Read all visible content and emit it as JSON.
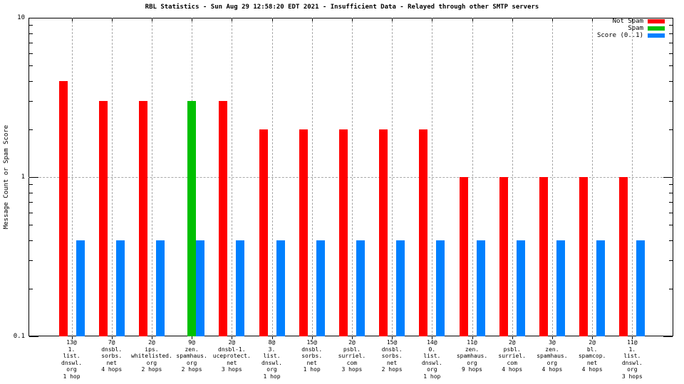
{
  "chart_data": {
    "type": "bar",
    "title": "RBL Statistics - Sun Aug 29 12:58:20 EDT 2021 - Insufficient Data - Relayed through other SMTP servers",
    "ylabel": "Message Count or Spam Score",
    "xlabel": "",
    "yscale": "log",
    "ylim": [
      0.1,
      10
    ],
    "ytick_labels": [
      "10",
      "1",
      "0.1"
    ],
    "ytick_values": [
      10,
      1,
      0.1
    ],
    "grid": {
      "vertical_dashed_at_each_category": true,
      "horizontal_dashed_at": 1
    },
    "legend_position": "top-right-inside",
    "background_color": "#ffffff",
    "grid_color": "#a9a9a9",
    "categories": [
      [
        "13@",
        "1.",
        "list.",
        "dnswl.",
        "org",
        "1 hop"
      ],
      [
        "7@",
        "dnsbl.",
        "sorbs.",
        "net",
        "4 hops"
      ],
      [
        "2@",
        "ips.",
        "whitelisted.",
        "org",
        "2 hops"
      ],
      [
        "9@",
        "zen.",
        "spamhaus.",
        "org",
        "2 hops"
      ],
      [
        "2@",
        "dnsbl-1.",
        "uceprotect.",
        "net",
        "3 hops"
      ],
      [
        "8@",
        "3.",
        "list.",
        "dnswl.",
        "org",
        "1 hop"
      ],
      [
        "15@",
        "dnsbl.",
        "sorbs.",
        "net",
        "1 hop"
      ],
      [
        "2@",
        "psbl.",
        "surriel.",
        "com",
        "3 hops"
      ],
      [
        "15@",
        "dnsbl.",
        "sorbs.",
        "net",
        "2 hops"
      ],
      [
        "14@",
        "0.",
        "list.",
        "dnswl.",
        "org",
        "1 hop"
      ],
      [
        "11@",
        "zen.",
        "spamhaus.",
        "org",
        "9 hops"
      ],
      [
        "2@",
        "psbl.",
        "surriel.",
        "com",
        "4 hops"
      ],
      [
        "3@",
        "zen.",
        "spamhaus.",
        "org",
        "4 hops"
      ],
      [
        "2@",
        "bl.",
        "spamcop.",
        "net",
        "4 hops"
      ],
      [
        "11@",
        "1.",
        "list.",
        "dnswl.",
        "org",
        "3 hops"
      ]
    ],
    "series": [
      {
        "name": "Not Spam",
        "color": "#ff0000",
        "values": [
          4,
          3,
          3,
          0,
          3,
          2,
          2,
          2,
          2,
          2,
          1,
          1,
          1,
          1,
          1
        ]
      },
      {
        "name": "Spam",
        "color": "#00c000",
        "values": [
          0,
          0,
          0,
          3,
          0,
          0,
          0,
          0,
          0,
          0,
          0,
          0,
          0,
          0,
          0
        ]
      },
      {
        "name": "Score (0..1)",
        "color": "#0080ff",
        "values": [
          0.4,
          0.4,
          0.4,
          0.4,
          0.4,
          0.4,
          0.4,
          0.4,
          0.4,
          0.4,
          0.4,
          0.4,
          0.4,
          0.4,
          0.4
        ]
      }
    ]
  }
}
